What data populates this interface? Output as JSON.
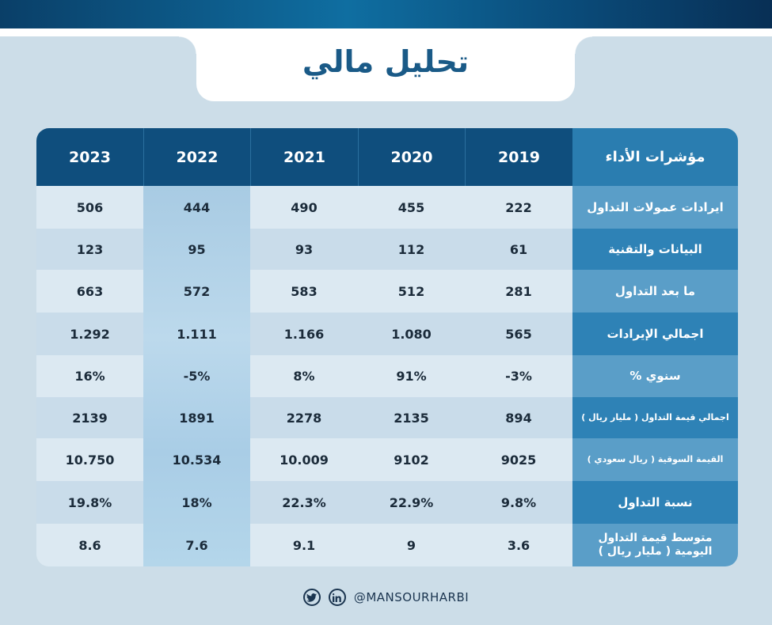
{
  "title": "تحليل مالي",
  "table": {
    "header": {
      "indicator": "مؤشرات الأداء",
      "years": [
        "2019",
        "2020",
        "2021",
        "2022",
        "2023"
      ]
    },
    "rows": [
      {
        "label": "ايرادات عمولات التداول",
        "values": [
          "222",
          "455",
          "490",
          "444",
          "506"
        ]
      },
      {
        "label": "البيانات والتقنية",
        "values": [
          "61",
          "112",
          "93",
          "95",
          "123"
        ]
      },
      {
        "label": "ما بعد التداول",
        "values": [
          "281",
          "512",
          "583",
          "572",
          "663"
        ]
      },
      {
        "label": "اجمالي الإيرادات",
        "values": [
          "565",
          "1.080",
          "1.166",
          "1.111",
          "1.292"
        ]
      },
      {
        "label": "سنوي %",
        "values": [
          "-3%",
          "91%",
          "8%",
          "-5%",
          "16%"
        ]
      },
      {
        "label": "اجمالي قيمة التداول ( مليار ريال )",
        "values": [
          "894",
          "2135",
          "2278",
          "1891",
          "2139"
        ]
      },
      {
        "label": "القيمة السوقية ( ريال سعودي )",
        "values": [
          "9025",
          "9102",
          "10.009",
          "10.534",
          "10.750"
        ]
      },
      {
        "label": "نسبة التداول",
        "values": [
          "9.8%",
          "22.9%",
          "22.3%",
          "18%",
          "19.8%"
        ]
      },
      {
        "label": "متوسط قيمة التداول اليومية ( مليار ريال )",
        "values": [
          "3.6",
          "9",
          "9.1",
          "7.6",
          "8.6"
        ]
      }
    ]
  },
  "footer": {
    "handle": "@MANSOURHARBI",
    "icons": [
      "twitter-icon",
      "linkedin-icon"
    ]
  },
  "colors": {
    "header_dark": "#0f4e7d",
    "indicator_header": "#2a7db0",
    "title": "#1a5a87",
    "background": "#ccdde8"
  }
}
